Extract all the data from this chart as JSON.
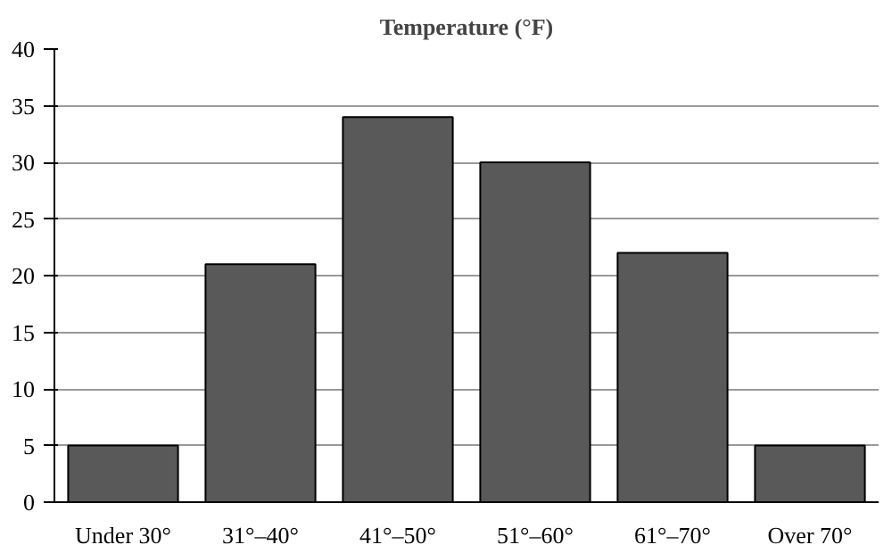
{
  "chart_data": {
    "type": "bar",
    "title": "Temperature (°F)",
    "categories": [
      "Under 30°",
      "31°–40°",
      "41°–50°",
      "51°–60°",
      "61°–70°",
      "Over 70°"
    ],
    "values": [
      5,
      21,
      34,
      30,
      22,
      5
    ],
    "color": "#595959",
    "ylim": [
      0,
      40
    ],
    "yticks": [
      0,
      5,
      10,
      15,
      20,
      25,
      30,
      35,
      40
    ],
    "grid": "y"
  }
}
